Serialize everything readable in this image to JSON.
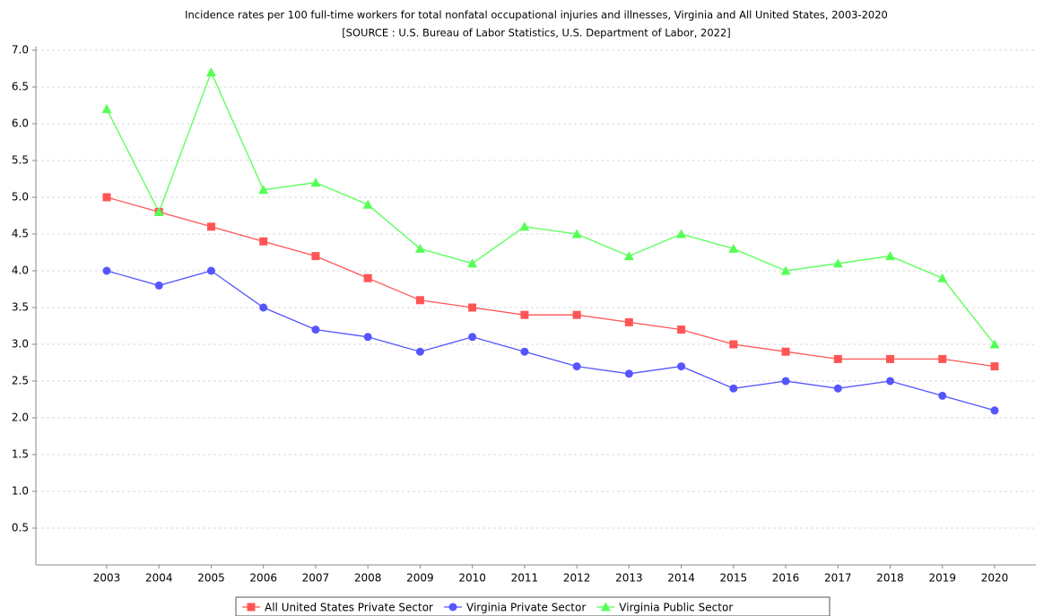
{
  "chart_data": {
    "type": "line",
    "title": "Incidence rates per 100 full-time workers for total nonfatal occupational injuries and illnesses, Virginia and All United States, 2003-2020",
    "subtitle": "[SOURCE : U.S. Bureau of Labor Statistics, U.S. Department of Labor, 2022]",
    "categories": [
      "2003",
      "2004",
      "2005",
      "2006",
      "2007",
      "2008",
      "2009",
      "2010",
      "2011",
      "2012",
      "2013",
      "2014",
      "2015",
      "2016",
      "2017",
      "2018",
      "2019",
      "2020"
    ],
    "series": [
      {
        "name": "All United States Private Sector",
        "color": "#ff5555",
        "values": [
          5.0,
          4.8,
          4.6,
          4.4,
          4.2,
          3.9,
          3.6,
          3.5,
          3.4,
          3.4,
          3.3,
          3.2,
          3.0,
          2.9,
          2.8,
          2.8,
          2.8,
          2.7
        ]
      },
      {
        "name": "Virginia Private Sector",
        "color": "#5555ff",
        "values": [
          4.0,
          3.8,
          4.0,
          3.5,
          3.2,
          3.1,
          2.9,
          3.1,
          2.9,
          2.7,
          2.6,
          2.7,
          2.4,
          2.5,
          2.4,
          2.5,
          2.3,
          2.1
        ]
      },
      {
        "name": "Virginia Public Sector",
        "color": "#55ff55",
        "values": [
          6.2,
          4.8,
          6.7,
          5.1,
          5.2,
          4.9,
          4.3,
          4.1,
          4.6,
          4.5,
          4.2,
          4.5,
          4.3,
          4.0,
          4.1,
          4.2,
          3.9,
          3.0
        ]
      }
    ],
    "ylim": [
      0,
      7
    ],
    "yticks": [
      0.5,
      {
        "value": 1,
        "label": "1.0"
      },
      1.5,
      {
        "value": 2,
        "label": "2.0"
      },
      2.5,
      {
        "value": 3,
        "label": "3.0"
      },
      3.5,
      {
        "value": 4,
        "label": "4.0"
      },
      4.5,
      {
        "value": 5,
        "label": "5.0"
      },
      5.5,
      {
        "value": 6,
        "label": "6.0"
      },
      6.5,
      {
        "value": 7,
        "label": "7.0"
      }
    ],
    "grid": true,
    "legend": "bottom"
  }
}
